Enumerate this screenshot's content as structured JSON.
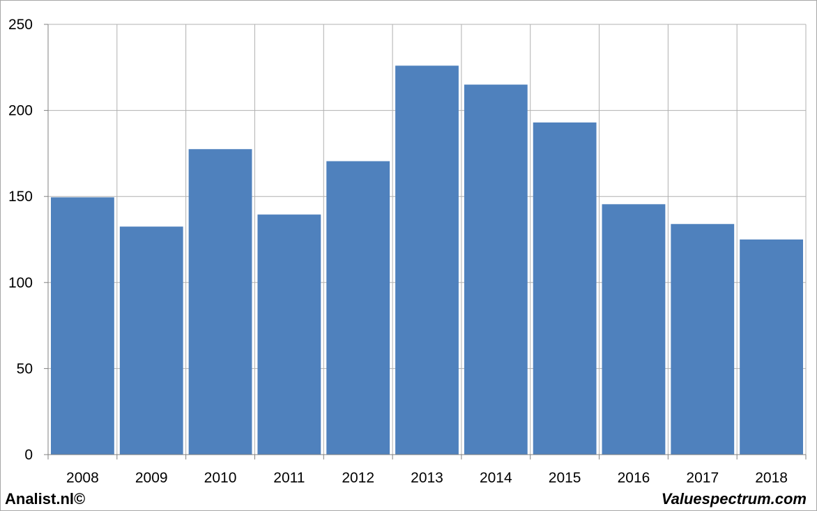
{
  "chart_data": {
    "type": "bar",
    "categories": [
      "2008",
      "2009",
      "2010",
      "2011",
      "2012",
      "2013",
      "2014",
      "2015",
      "2016",
      "2017",
      "2018"
    ],
    "values": [
      149.5,
      132.5,
      177.5,
      139.5,
      170.5,
      226,
      215,
      193,
      145.5,
      134,
      125
    ],
    "title": "",
    "xlabel": "",
    "ylabel": "",
    "ylim": [
      0,
      250
    ],
    "yticks": [
      "0",
      "50",
      "100",
      "150",
      "200",
      "250"
    ],
    "grid": true,
    "legend": "none",
    "bar_color": "#4f81bd",
    "grid_color": "#b0b0b0"
  },
  "footer": {
    "left_text": "Analist.nl©",
    "right_text": "Valuespectrum.com"
  }
}
